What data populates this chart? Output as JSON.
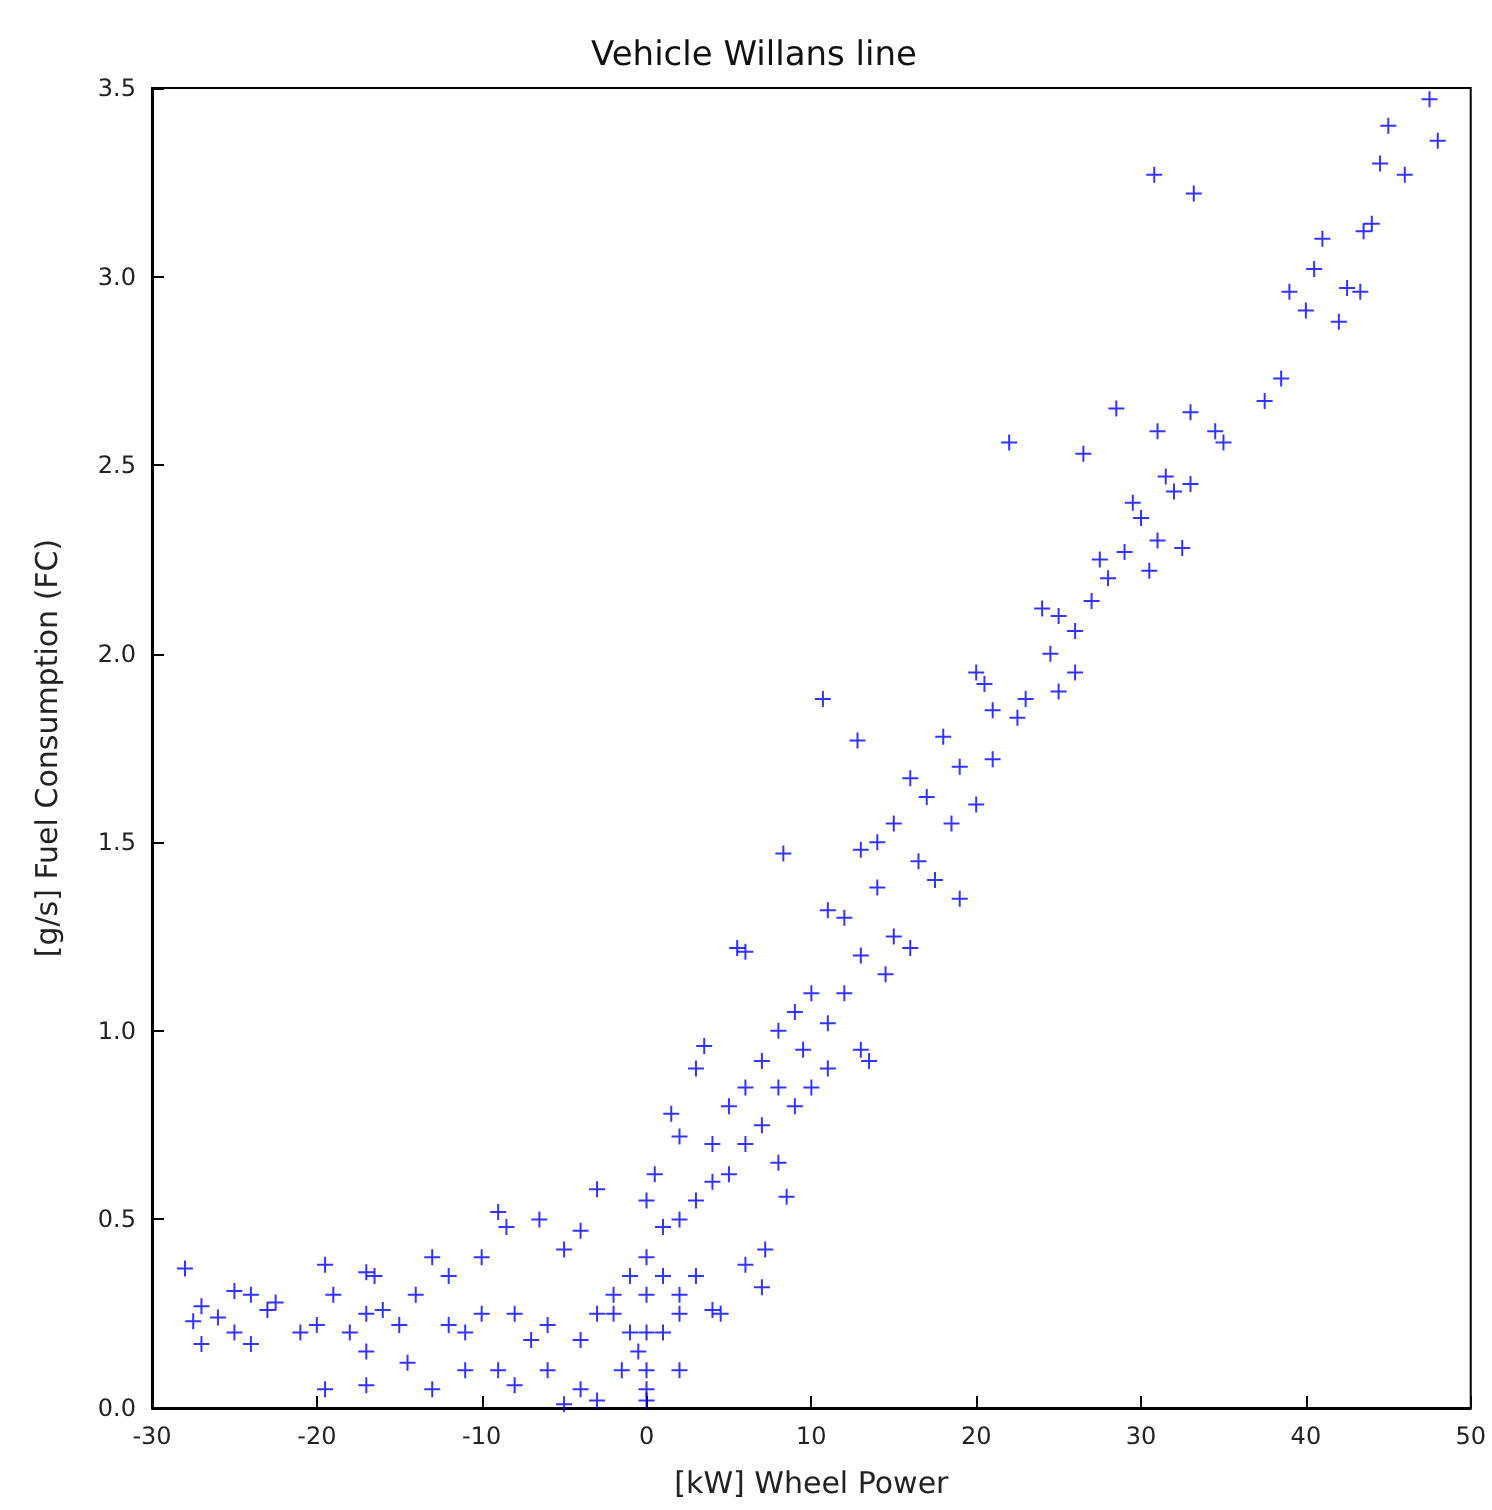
{
  "chart_data": {
    "type": "scatter",
    "title": "Vehicle Willans line",
    "xlabel": "[kW] Wheel Power",
    "ylabel": "[g/s] Fuel Consumption (FC)",
    "xlim": [
      -30,
      50
    ],
    "xticks": [
      -30,
      -20,
      -10,
      0,
      10,
      20,
      30,
      40,
      50
    ],
    "ylim": [
      0,
      3.5
    ],
    "yticks": [
      {
        "value": 0,
        "label": "0.0"
      },
      0.5,
      {
        "value": 1,
        "label": "1.0"
      },
      1.5,
      {
        "value": 2,
        "label": "2.0"
      },
      2.5,
      {
        "value": 3,
        "label": "3.0"
      },
      3.5
    ],
    "grid": false,
    "marker": "cross",
    "series": [
      {
        "color": "#0000ff",
        "x": [
          47.5,
          45,
          48,
          44.5,
          46,
          30.8,
          33.2,
          41,
          40.5,
          43.5,
          44,
          39,
          40,
          42,
          42.5,
          43.3,
          38.5,
          37.5,
          22,
          28.5,
          31,
          26.5,
          33,
          34.5,
          35,
          33,
          32,
          30,
          31,
          32.5,
          29,
          30.5,
          28,
          27,
          25,
          24,
          26,
          24.5,
          27.5,
          29.5,
          31.5,
          26,
          23,
          25,
          22.5,
          21,
          20,
          10.7,
          12.8,
          20.5,
          18,
          19,
          21,
          17,
          16,
          18.5,
          20,
          15,
          14,
          8.3,
          16.5,
          13,
          17.5,
          19,
          14,
          12,
          11,
          15,
          16,
          13,
          14.5,
          12,
          10,
          11,
          9,
          5.5,
          6,
          8,
          9.5,
          13,
          13.5,
          7,
          8,
          10,
          11,
          9,
          6,
          3.5,
          3,
          5,
          7,
          6,
          4,
          5,
          8,
          8.5,
          7.2,
          7,
          6,
          4,
          3,
          2,
          1,
          1.5,
          2,
          0.5,
          0,
          -3,
          -1,
          0,
          1,
          2,
          3,
          2,
          4,
          4.5,
          2,
          1,
          0,
          0,
          0,
          0,
          0,
          -0.5,
          -1,
          -2,
          -1.5,
          -3,
          -4,
          -5,
          -2,
          -3,
          -4,
          -4,
          -5,
          -6,
          -7,
          -8,
          -9,
          -8.5,
          -10,
          -11,
          -10,
          -12,
          -11,
          -9,
          -8,
          -12,
          -13,
          -14,
          -15,
          -14.5,
          -16,
          -17,
          -16.5,
          -17,
          -18,
          -17,
          -17,
          -19.5,
          -19,
          -20,
          -21,
          -19.5,
          -22.5,
          -23,
          -24,
          -25,
          -25,
          -24,
          -26,
          -27,
          -27.5,
          -27,
          -28,
          -13,
          -6.5,
          -6
        ],
        "values": [
          3.47,
          3.4,
          3.36,
          3.3,
          3.27,
          3.27,
          3.22,
          3.1,
          3.02,
          3.12,
          3.14,
          2.96,
          2.91,
          2.88,
          2.97,
          2.96,
          2.73,
          2.67,
          2.56,
          2.65,
          2.59,
          2.53,
          2.64,
          2.59,
          2.56,
          2.45,
          2.43,
          2.36,
          2.3,
          2.28,
          2.27,
          2.22,
          2.2,
          2.14,
          2.1,
          2.12,
          2.06,
          2.0,
          2.25,
          2.4,
          2.47,
          1.95,
          1.88,
          1.9,
          1.83,
          1.85,
          1.95,
          1.88,
          1.77,
          1.92,
          1.78,
          1.7,
          1.72,
          1.62,
          1.67,
          1.55,
          1.6,
          1.55,
          1.5,
          1.47,
          1.45,
          1.48,
          1.4,
          1.35,
          1.38,
          1.3,
          1.32,
          1.25,
          1.22,
          1.2,
          1.15,
          1.1,
          1.1,
          1.02,
          1.05,
          1.22,
          1.21,
          1.0,
          0.95,
          0.95,
          0.92,
          0.92,
          0.85,
          0.85,
          0.9,
          0.8,
          0.85,
          0.96,
          0.9,
          0.8,
          0.75,
          0.7,
          0.7,
          0.62,
          0.65,
          0.56,
          0.42,
          0.32,
          0.38,
          0.6,
          0.55,
          0.5,
          0.48,
          0.78,
          0.72,
          0.62,
          0.55,
          0.58,
          0.35,
          0.4,
          0.35,
          0.3,
          0.35,
          0.25,
          0.26,
          0.25,
          0.1,
          0.2,
          0.3,
          0.2,
          0.1,
          0.02,
          0.05,
          0.15,
          0.2,
          0.25,
          0.1,
          0.02,
          0.05,
          0.01,
          0.3,
          0.25,
          0.18,
          0.47,
          0.42,
          0.22,
          0.18,
          0.25,
          0.52,
          0.48,
          0.4,
          0.2,
          0.25,
          0.22,
          0.1,
          0.1,
          0.06,
          0.35,
          0.4,
          0.3,
          0.22,
          0.12,
          0.26,
          0.36,
          0.35,
          0.25,
          0.2,
          0.15,
          0.06,
          0.38,
          0.3,
          0.22,
          0.2,
          0.05,
          0.28,
          0.26,
          0.3,
          0.31,
          0.2,
          0.17,
          0.24,
          0.27,
          0.23,
          0.17,
          0.37,
          0.05,
          0.5,
          0.1
        ]
      }
    ]
  }
}
